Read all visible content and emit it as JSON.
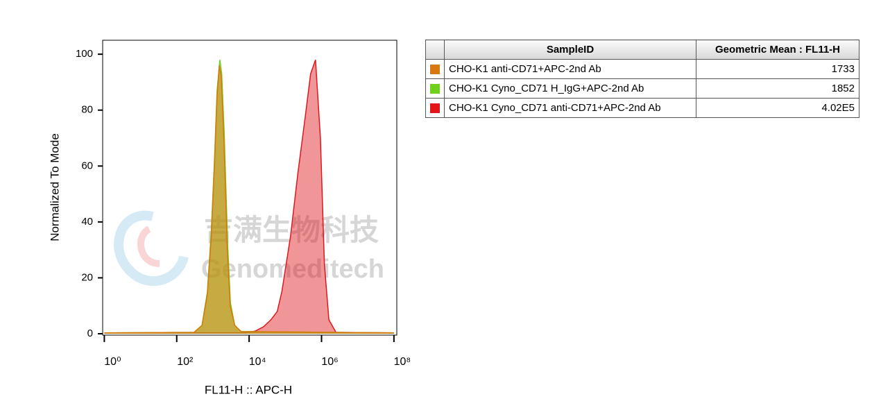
{
  "chart_data": {
    "type": "histogram-overlay",
    "x_label": "FL11-H :: APC-H",
    "y_label": "Normalized To Mode",
    "xscale": "log",
    "xlim": [
      0.9,
      120000000
    ],
    "ylim": [
      0,
      105
    ],
    "xticks": [
      {
        "value": 1,
        "label": "10⁰"
      },
      {
        "value": 100,
        "label": "10²"
      },
      {
        "value": 10000,
        "label": "10⁴"
      },
      {
        "value": 1000000,
        "label": "10⁶"
      },
      {
        "value": 100000000,
        "label": "10⁸"
      }
    ],
    "yticks": [
      0,
      20,
      40,
      60,
      80,
      100
    ],
    "series": [
      {
        "name": "CHO-K1 anti-CD71+APC-2nd Ab",
        "color": "#d9780f",
        "x": [
          1,
          300,
          500,
          700,
          900,
          1100,
          1300,
          1500,
          1700,
          2000,
          2500,
          3000,
          4000,
          6000,
          100000000
        ],
        "values": [
          0.3,
          0.5,
          3,
          14,
          35,
          60,
          85,
          96,
          92,
          70,
          30,
          10,
          3,
          0.8,
          0.3
        ]
      },
      {
        "name": "CHO-K1 Cyno_CD71 H_IgG+APC-2nd Ab",
        "color": "#6fd11a",
        "x": [
          1,
          300,
          500,
          700,
          900,
          1100,
          1300,
          1550,
          1750,
          2050,
          2550,
          3050,
          4000,
          6000,
          100000000
        ],
        "values": [
          0.3,
          0.5,
          3,
          15,
          37,
          62,
          87,
          98,
          93,
          72,
          32,
          11,
          3,
          0.8,
          0.3
        ]
      },
      {
        "name": "CHO-K1 Cyno_CD71 anti-CD71+APC-2nd Ab",
        "color": "#e0161b",
        "x": [
          1,
          8000,
          15000,
          25000,
          40000,
          60000,
          80000,
          140000,
          220000,
          350000,
          500000,
          680000,
          930000,
          1200000,
          1600000,
          2500000,
          100000000
        ],
        "values": [
          0.3,
          0.3,
          1,
          2.5,
          5,
          8,
          15,
          35,
          57,
          77,
          93,
          98,
          70,
          25,
          5,
          0.5,
          0.3
        ]
      }
    ]
  },
  "table": {
    "columns": [
      "SampleID",
      "Geometric Mean : FL11-H"
    ],
    "geometric_means": [
      "1733",
      "1852",
      "4.02E5"
    ]
  },
  "watermark": {
    "cn": "吉满生物科技",
    "en": "Genomeditech"
  }
}
